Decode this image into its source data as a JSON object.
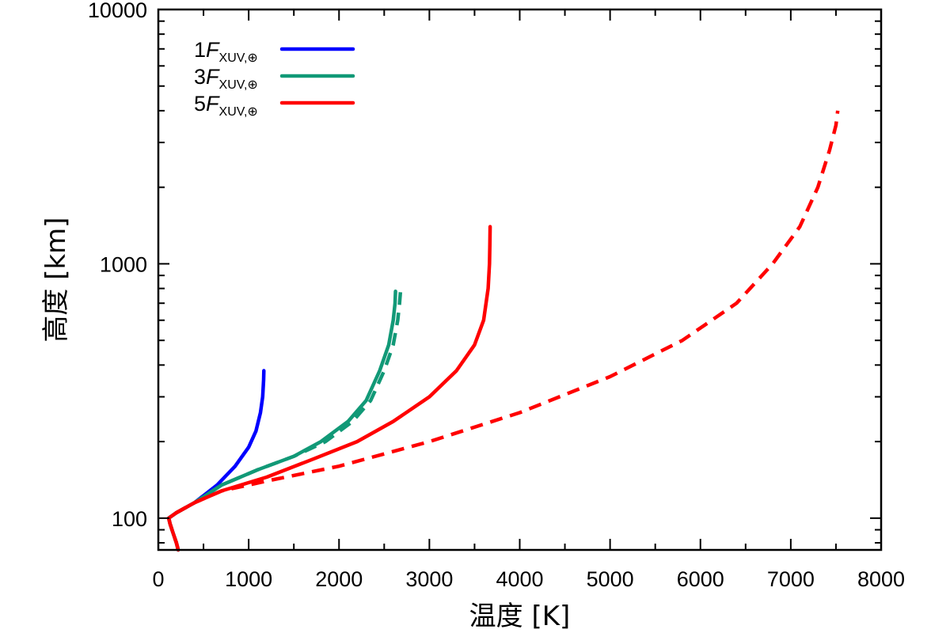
{
  "chart_data": {
    "type": "line",
    "title": "",
    "xlabel": "温度 [K]",
    "ylabel": "高度 [km]",
    "xlim": [
      0,
      8000
    ],
    "ylim": [
      75,
      10000
    ],
    "yscale": "log",
    "x_ticks": [
      0,
      1000,
      2000,
      3000,
      4000,
      5000,
      6000,
      7000,
      8000
    ],
    "y_ticks": [
      100,
      1000,
      10000
    ],
    "grid": false,
    "legend_position": "top-left",
    "series": [
      {
        "name_number": "1",
        "name_symbol": "F",
        "name_subscript": "XUV,⊕",
        "color": "#0000ff",
        "style": "solid",
        "points": [
          [
            220,
            75
          ],
          [
            200,
            80
          ],
          [
            160,
            88
          ],
          [
            130,
            95
          ],
          [
            115,
            100
          ],
          [
            200,
            105
          ],
          [
            400,
            115
          ],
          [
            650,
            135
          ],
          [
            850,
            160
          ],
          [
            1000,
            190
          ],
          [
            1080,
            220
          ],
          [
            1130,
            260
          ],
          [
            1155,
            300
          ],
          [
            1165,
            350
          ],
          [
            1168,
            380
          ]
        ]
      },
      {
        "name_number": "3",
        "name_symbol": "F",
        "name_subscript": "XUV,⊕",
        "color": "#119977",
        "style": "solid",
        "points": [
          [
            220,
            75
          ],
          [
            200,
            80
          ],
          [
            160,
            88
          ],
          [
            130,
            95
          ],
          [
            115,
            100
          ],
          [
            200,
            105
          ],
          [
            400,
            115
          ],
          [
            700,
            135
          ],
          [
            1100,
            155
          ],
          [
            1500,
            175
          ],
          [
            1800,
            200
          ],
          [
            2100,
            240
          ],
          [
            2300,
            290
          ],
          [
            2450,
            380
          ],
          [
            2550,
            480
          ],
          [
            2600,
            600
          ],
          [
            2620,
            700
          ],
          [
            2625,
            780
          ]
        ]
      },
      {
        "name_number": "",
        "name_symbol": "",
        "name_subscript": "",
        "color": "#119977",
        "style": "dashed",
        "points": [
          [
            220,
            75
          ],
          [
            200,
            80
          ],
          [
            160,
            88
          ],
          [
            130,
            95
          ],
          [
            115,
            100
          ],
          [
            200,
            105
          ],
          [
            400,
            115
          ],
          [
            700,
            135
          ],
          [
            1100,
            155
          ],
          [
            1500,
            175
          ],
          [
            1850,
            200
          ],
          [
            2150,
            240
          ],
          [
            2350,
            290
          ],
          [
            2500,
            380
          ],
          [
            2600,
            480
          ],
          [
            2650,
            600
          ],
          [
            2670,
            700
          ],
          [
            2680,
            780
          ]
        ]
      },
      {
        "name_number": "5",
        "name_symbol": "F",
        "name_subscript": "XUV,⊕",
        "color": "#ff0000",
        "style": "solid",
        "points": [
          [
            220,
            75
          ],
          [
            200,
            80
          ],
          [
            160,
            88
          ],
          [
            130,
            95
          ],
          [
            115,
            100
          ],
          [
            200,
            105
          ],
          [
            400,
            115
          ],
          [
            700,
            128
          ],
          [
            1200,
            145
          ],
          [
            1700,
            170
          ],
          [
            2200,
            200
          ],
          [
            2600,
            240
          ],
          [
            3000,
            300
          ],
          [
            3300,
            380
          ],
          [
            3500,
            480
          ],
          [
            3600,
            600
          ],
          [
            3650,
            800
          ],
          [
            3665,
            1000
          ],
          [
            3670,
            1200
          ],
          [
            3672,
            1400
          ]
        ]
      },
      {
        "name_number": "",
        "name_symbol": "",
        "name_subscript": "",
        "color": "#ff0000",
        "style": "dashed",
        "points": [
          [
            220,
            75
          ],
          [
            200,
            80
          ],
          [
            160,
            88
          ],
          [
            130,
            95
          ],
          [
            115,
            100
          ],
          [
            200,
            105
          ],
          [
            400,
            115
          ],
          [
            700,
            128
          ],
          [
            1200,
            140
          ],
          [
            2000,
            160
          ],
          [
            3000,
            200
          ],
          [
            4000,
            260
          ],
          [
            5000,
            360
          ],
          [
            5800,
            500
          ],
          [
            6400,
            700
          ],
          [
            6800,
            1000
          ],
          [
            7100,
            1400
          ],
          [
            7300,
            2000
          ],
          [
            7430,
            2800
          ],
          [
            7500,
            3500
          ],
          [
            7520,
            4000
          ]
        ]
      }
    ]
  }
}
